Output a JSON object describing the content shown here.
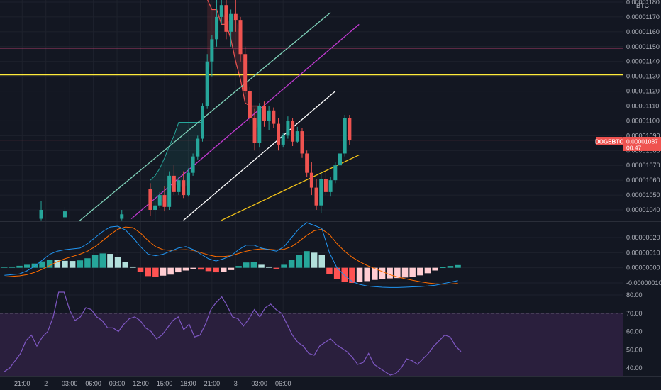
{
  "chart_data": [
    {
      "type": "candlestick",
      "symbol": "DOGEBTC",
      "currency": "BTC",
      "price_label": "0.00001087",
      "countdown": "00:47",
      "yticks": [
        "0.00001180",
        "0.00001170",
        "0.00001160",
        "0.00001150",
        "0.00001140",
        "0.00001130",
        "0.00001120",
        "0.00001110",
        "0.00001100",
        "0.00001090",
        "0.00001080",
        "0.00001070",
        "0.00001060",
        "0.00001050",
        "0.00001040"
      ],
      "ylim": [
        1.033e-05,
        1.182e-05
      ],
      "xticks": [
        "21:00",
        "2",
        "03:00",
        "06:00",
        "09:00",
        "12:00",
        "15:00",
        "18:00",
        "21:00",
        "3",
        "03:00",
        "06:00"
      ],
      "xtick_bar": [
        4,
        9,
        14,
        19,
        24,
        29,
        34,
        39,
        44,
        49,
        54,
        59
      ],
      "grid": true,
      "colors": {
        "up": "#26a69a",
        "down": "#ef5350",
        "trail": "#ef5350"
      },
      "candles_ohlc": [
        [
          1.054e-05,
          1.058e-05,
          1.036e-05,
          1.04e-05
        ],
        [
          1.04e-05,
          1.046e-05,
          1.033e-05,
          1.043e-05
        ],
        [
          1.043e-05,
          1.052e-05,
          1.041e-05,
          1.05e-05
        ],
        [
          1.05e-05,
          1.056e-05,
          1.039e-05,
          1.042e-05
        ],
        [
          1.042e-05,
          1.066e-05,
          1.04e-05,
          1.063e-05
        ],
        [
          1.063e-05,
          1.07e-05,
          1.05e-05,
          1.052e-05
        ],
        [
          1.052e-05,
          1.062e-05,
          1.05e-05,
          1.06e-05
        ],
        [
          1.06e-05,
          1.066e-05,
          1.048e-05,
          1.05e-05
        ],
        [
          1.05e-05,
          1.068e-05,
          1.049e-05,
          1.065e-05
        ],
        [
          1.065e-05,
          1.078e-05,
          1.063e-05,
          1.076e-05
        ],
        [
          1.076e-05,
          1.09e-05,
          1.074e-05,
          1.088e-05
        ],
        [
          1.088e-05,
          1.112e-05,
          1.086e-05,
          1.11e-05
        ],
        [
          1.11e-05,
          1.145e-05,
          1.108e-05,
          1.14e-05
        ],
        [
          1.14e-05,
          1.158e-05,
          1.13e-05,
          1.155e-05
        ],
        [
          1.155e-05,
          1.182e-05,
          1.15e-05,
          1.17e-05
        ],
        [
          1.17e-05,
          1.182e-05,
          1.165e-05,
          1.178e-05
        ],
        [
          1.178e-05,
          1.182e-05,
          1.155e-05,
          1.16e-05
        ],
        [
          1.16e-05,
          1.175e-05,
          1.15e-05,
          1.172e-05
        ],
        [
          1.172e-05,
          1.182e-05,
          1.16e-05,
          1.168e-05
        ],
        [
          1.168e-05,
          1.17e-05,
          1.14e-05,
          1.145e-05
        ],
        [
          1.145e-05,
          1.15e-05,
          1.118e-05,
          1.12e-05
        ],
        [
          1.12e-05,
          1.123e-05,
          1.098e-05,
          1.102e-05
        ],
        [
          1.102e-05,
          1.108e-05,
          1.08e-05,
          1.085e-05
        ],
        [
          1.085e-05,
          1.112e-05,
          1.082e-05,
          1.11e-05
        ],
        [
          1.11e-05,
          1.113e-05,
          1.096e-05,
          1.1e-05
        ],
        [
          1.1e-05,
          1.11e-05,
          1.094e-05,
          1.107e-05
        ],
        [
          1.107e-05,
          1.109e-05,
          1.095e-05,
          1.098e-05
        ],
        [
          1.098e-05,
          1.102e-05,
          1.08e-05,
          1.084e-05
        ],
        [
          1.084e-05,
          1.092e-05,
          1.082e-05,
          1.09e-05
        ],
        [
          1.09e-05,
          1.103e-05,
          1.088e-05,
          1.1e-05
        ],
        [
          1.1e-05,
          1.102e-05,
          1.083e-05,
          1.086e-05
        ],
        [
          1.086e-05,
          1.096e-05,
          1.085e-05,
          1.093e-05
        ],
        [
          1.093e-05,
          1.095e-05,
          1.075e-05,
          1.078e-05
        ],
        [
          1.078e-05,
          1.08e-05,
          1.062e-05,
          1.065e-05
        ],
        [
          1.065e-05,
          1.072e-05,
          1.05e-05,
          1.055e-05
        ],
        [
          1.055e-05,
          1.061e-05,
          1.04e-05,
          1.043e-05
        ],
        [
          1.043e-05,
          1.066e-05,
          1.038e-05,
          1.061e-05
        ],
        [
          1.061e-05,
          1.066e-05,
          1.05e-05,
          1.052e-05
        ],
        [
          1.052e-05,
          1.062e-05,
          1.049e-05,
          1.06e-05
        ],
        [
          1.06e-05,
          1.072e-05,
          1.058e-05,
          1.07e-05
        ],
        [
          1.07e-05,
          1.08e-05,
          1.068e-05,
          1.078e-05
        ],
        [
          1.078e-05,
          1.104e-05,
          1.076e-05,
          1.102e-05
        ],
        [
          1.102e-05,
          1.104e-05,
          1.084e-05,
          1.087e-05
        ]
      ],
      "candles_start_bar": 31,
      "early_candles": [
        {
          "bar": 8,
          "o": 1.034e-05,
          "c": 1.04e-05,
          "h": 1.046e-05,
          "l": 1.033e-05
        },
        {
          "bar": 13,
          "o": 1.035e-05,
          "c": 1.039e-05,
          "h": 1.042e-05,
          "l": 1.033e-05
        },
        {
          "bar": 25,
          "o": 1.034e-05,
          "c": 1.037e-05,
          "h": 1.04e-05,
          "l": 1.033e-05
        }
      ],
      "hlines": [
        {
          "value": 1.149e-05,
          "color": "#d6497e"
        },
        {
          "value": 1.131e-05,
          "color": "#ffeb3b"
        },
        {
          "value": 1.087e-05,
          "color": "#8a3b46"
        }
      ],
      "trendlines": [
        {
          "from": [
            0,
            9.9e-06
          ],
          "to": [
            69,
            1.173e-05
          ],
          "color": "#7fd1b9"
        },
        {
          "from": [
            27,
            1.034e-05
          ],
          "to": [
            75,
            1.165e-05
          ],
          "color": "#c03ad0"
        },
        {
          "from": [
            38,
            1.033e-05
          ],
          "to": [
            70,
            1.12e-05
          ],
          "color": "#ffffff"
        },
        {
          "from": [
            46,
            1.033e-05
          ],
          "to": [
            75,
            1.077e-05
          ],
          "color": "#f5c518"
        }
      ],
      "trail": [
        [
          31,
          1.06e-05
        ],
        [
          32,
          1.063e-05
        ],
        [
          33,
          1.068e-05
        ],
        [
          34,
          1.075e-05
        ],
        [
          35,
          1.083e-05
        ],
        [
          36,
          1.09e-05
        ],
        [
          37,
          1.099e-05
        ],
        [
          38,
          1.099e-05
        ],
        [
          39,
          1.099e-05
        ],
        [
          40,
          1.099e-05
        ],
        [
          41,
          1.099e-05
        ],
        [
          42,
          1.099e-05
        ],
        [
          43,
          1.182e-05
        ],
        [
          44,
          1.175e-05
        ],
        [
          45,
          1.175e-05
        ],
        [
          46,
          1.165e-05
        ],
        [
          47,
          1.165e-05
        ],
        [
          48,
          1.155e-05
        ],
        [
          49,
          1.14e-05
        ],
        [
          50,
          1.128e-05
        ],
        [
          51,
          1.112e-05
        ],
        [
          52,
          1.11e-05
        ],
        [
          53,
          1.11e-05
        ],
        [
          54,
          1.11e-05
        ]
      ]
    },
    {
      "type": "macd",
      "yticks": [
        "0.00000020",
        "0.00000010",
        "0.00000000",
        "-0.00000010"
      ],
      "ylim": [
        -1.5e-07,
        2.8e-07
      ],
      "colors": {
        "macd": "#2196f3",
        "signal": "#ff6d00",
        "pos_up": "#26a69a",
        "pos_down": "#b2dfdb",
        "neg_down": "#ff5252",
        "neg_up": "#ffcdd2"
      },
      "histogram": [
        5e-09,
        8e-09,
        1.3e-08,
        2e-08,
        2.8e-08,
        4.2e-08,
        5.2e-08,
        5e-08,
        4.6e-08,
        4.5e-08,
        4.9e-08,
        6.3e-08,
        8.3e-08,
        9.5e-08,
        9.2e-08,
        7e-08,
        4e-08,
        8e-09,
        -2.5e-08,
        -5.5e-08,
        -6e-08,
        -5.2e-08,
        -4.5e-08,
        -3e-08,
        -1.8e-08,
        -1e-08,
        -1.2e-08,
        -2.2e-08,
        -3e-08,
        -2.8e-08,
        -1.5e-08,
        1.2e-08,
        3.5e-08,
        3.8e-08,
        2e-08,
        8e-09,
        -6e-09,
        2e-08,
        5.2e-08,
        8.5e-08,
        1.1e-07,
        1e-07,
        8.5e-08,
        -4e-08,
        -7.5e-08,
        -9.5e-08,
        -1e-07,
        -9.5e-08,
        -8.8e-08,
        -8e-08,
        -7.5e-08,
        -7e-08,
        -6.8e-08,
        -6.4e-08,
        -5.8e-08,
        -5e-08,
        -3.6e-08,
        -1.8e-08,
        3e-09,
        1.2e-08,
        1.8e-08
      ],
      "macd_line": [
        -5e-08,
        -4.5e-08,
        -4e-08,
        -2e-08,
        1e-08,
        5e-08,
        9e-08,
        1.1e-07,
        1.2e-07,
        1.25e-07,
        1.3e-07,
        1.6e-07,
        2e-07,
        2.4e-07,
        2.7e-07,
        2.75e-07,
        2.5e-07,
        2e-07,
        1.4e-07,
        9e-08,
        8e-08,
        9e-08,
        1.1e-07,
        1.3e-07,
        1.4e-07,
        1.2e-07,
        9e-08,
        6e-08,
        4.5e-08,
        6e-08,
        8e-08,
        1.2e-07,
        1.5e-07,
        1.5e-07,
        1.3e-07,
        1.2e-07,
        1.1e-07,
        1.4e-07,
        2e-07,
        2.6e-07,
        3e-07,
        2.8e-07,
        2.6e-07,
        1e-07,
        0.0,
        -5e-08,
        -9e-08,
        -1.1e-07,
        -1.2e-07,
        -1.25e-07,
        -1.28e-07,
        -1.3e-07,
        -1.3e-07,
        -1.28e-07,
        -1.26e-07,
        -1.24e-07,
        -1.2e-07,
        -1.15e-07,
        -1.05e-07,
        -9.5e-08,
        -8.5e-08
      ],
      "signal_line": [
        -6e-08,
        -5.7e-08,
        -5.3e-08,
        -4.5e-08,
        -3e-08,
        -1e-08,
        1.5e-08,
        4e-08,
        6e-08,
        7.5e-08,
        9e-08,
        1.1e-07,
        1.4e-07,
        1.8e-07,
        2.2e-07,
        2.55e-07,
        2.7e-07,
        2.65e-07,
        2.3e-07,
        1.8e-07,
        1.4e-07,
        1.2e-07,
        1.15e-07,
        1.18e-07,
        1.2e-07,
        1.15e-07,
        1e-07,
        8.5e-08,
        7.5e-08,
        7.5e-08,
        8e-08,
        9.5e-08,
        1.1e-07,
        1.2e-07,
        1.25e-07,
        1.22e-07,
        1.18e-07,
        1.22e-07,
        1.4e-07,
        1.75e-07,
        2.15e-07,
        2.45e-07,
        2.55e-07,
        2.2e-07,
        1.6e-07,
        1.1e-07,
        7e-08,
        4e-08,
        1.5e-08,
        -5e-09,
        -2.5e-08,
        -4.5e-08,
        -6e-08,
        -7.2e-08,
        -8.2e-08,
        -9.2e-08,
        -1e-07,
        -1.05e-07,
        -1.08e-07,
        -1.07e-07,
        -1.03e-07
      ]
    },
    {
      "type": "rsi",
      "yticks": [
        "80.00",
        "70.00",
        "60.00",
        "50.00",
        "40.00"
      ],
      "ylim": [
        35,
        82
      ],
      "band": [
        30,
        70
      ],
      "colors": {
        "line": "#7e57c2",
        "band": "#2a1f3d"
      },
      "values": [
        38,
        40,
        44,
        48,
        55,
        58,
        52,
        57,
        60,
        68,
        82,
        82,
        72,
        66,
        68,
        73,
        72,
        68,
        66,
        62,
        62,
        60,
        64,
        67,
        68,
        66,
        62,
        60,
        56,
        58,
        62,
        66,
        68,
        61,
        64,
        57,
        58,
        64,
        72,
        76,
        79,
        74,
        68,
        67,
        63,
        67,
        72,
        68,
        73,
        75,
        72,
        70,
        64,
        58,
        54,
        52,
        48,
        47,
        52,
        54,
        56,
        53,
        51,
        49,
        46,
        42,
        43,
        48,
        42,
        40,
        38,
        34,
        37,
        40,
        45,
        44,
        42,
        45,
        48,
        52,
        55,
        58,
        57,
        52,
        49
      ]
    }
  ]
}
